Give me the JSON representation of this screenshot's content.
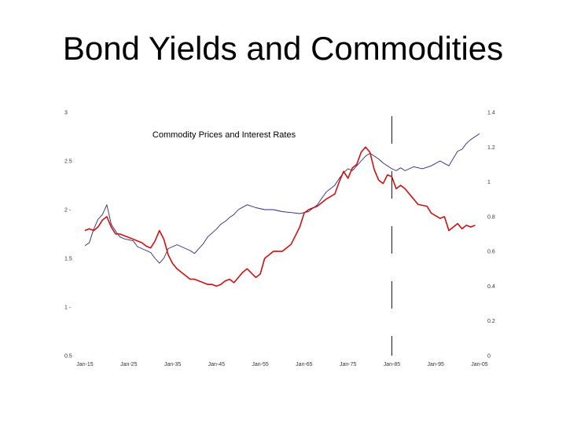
{
  "slide": {
    "title": "Bond Yields and Commodities"
  },
  "chart_data": {
    "type": "line",
    "title": "Commodity Prices and Interest Rates",
    "xlabel": "",
    "x_ticks": [
      "Jan-15",
      "Jan-25",
      "Jan-35",
      "Jan-45",
      "Jan-55",
      "Jan-65",
      "Jan-75",
      "Jan-85",
      "Jan-95",
      "Jan-05"
    ],
    "xlim": [
      1915,
      2005
    ],
    "y_left_ticks": [
      "0.5",
      "1 -",
      "1.5",
      "2 -",
      "2.5",
      "3"
    ],
    "y_left_values": [
      0.5,
      1.0,
      1.5,
      2.0,
      2.5,
      3.0
    ],
    "ylim_left": [
      0.5,
      3.0
    ],
    "y_right_ticks": [
      "0",
      "0.2",
      "0.4",
      "0.6",
      "0.8",
      "1",
      "1.2",
      "1.4"
    ],
    "y_right_values": [
      0,
      0.2,
      0.4,
      0.6,
      0.8,
      1.0,
      1.2,
      1.4
    ],
    "ylim_right": [
      0,
      1.4
    ],
    "grid": false,
    "legend": "none",
    "marker_year": 1985,
    "series": [
      {
        "color": "#2a2a7a",
        "axis": "left",
        "x": [
          1915,
          1916,
          1917,
          1918,
          1919,
          1920,
          1921,
          1922,
          1923,
          1924,
          1925,
          1926,
          1927,
          1928,
          1929,
          1930,
          1931,
          1932,
          1933,
          1934,
          1935,
          1936,
          1937,
          1938,
          1939,
          1940,
          1941,
          1942,
          1943,
          1944,
          1945,
          1946,
          1947,
          1948,
          1949,
          1950,
          1952,
          1954,
          1956,
          1958,
          1960,
          1962,
          1964,
          1966,
          1968,
          1970,
          1972,
          1973,
          1974,
          1975,
          1976,
          1977,
          1978,
          1979,
          1980,
          1981,
          1982,
          1983,
          1984,
          1985,
          1986,
          1987,
          1988,
          1990,
          1992,
          1994,
          1996,
          1998,
          2000,
          2001,
          2002,
          2003,
          2004,
          2005
        ],
        "values": [
          1.63,
          1.66,
          1.8,
          1.9,
          1.95,
          2.05,
          1.85,
          1.78,
          1.72,
          1.7,
          1.69,
          1.68,
          1.62,
          1.6,
          1.58,
          1.56,
          1.5,
          1.45,
          1.5,
          1.6,
          1.62,
          1.64,
          1.62,
          1.6,
          1.58,
          1.55,
          1.6,
          1.65,
          1.72,
          1.76,
          1.8,
          1.85,
          1.88,
          1.92,
          1.95,
          2.0,
          2.05,
          2.02,
          2.0,
          2.0,
          1.98,
          1.97,
          1.96,
          1.98,
          2.05,
          2.18,
          2.25,
          2.32,
          2.38,
          2.42,
          2.4,
          2.45,
          2.5,
          2.55,
          2.58,
          2.55,
          2.52,
          2.48,
          2.45,
          2.42,
          2.4,
          2.43,
          2.4,
          2.44,
          2.42,
          2.45,
          2.5,
          2.45,
          2.6,
          2.62,
          2.68,
          2.72,
          2.75,
          2.78
        ]
      },
      {
        "color": "#cc1111",
        "axis": "right",
        "x": [
          1915,
          1916,
          1917,
          1918,
          1919,
          1920,
          1921,
          1922,
          1923,
          1924,
          1925,
          1926,
          1927,
          1928,
          1929,
          1930,
          1931,
          1932,
          1933,
          1934,
          1935,
          1936,
          1937,
          1938,
          1939,
          1940,
          1941,
          1942,
          1943,
          1944,
          1945,
          1946,
          1947,
          1948,
          1949,
          1950,
          1951,
          1952,
          1954,
          1955,
          1956,
          1958,
          1960,
          1962,
          1964,
          1965,
          1966,
          1968,
          1970,
          1972,
          1973,
          1974,
          1975,
          1976,
          1977,
          1978,
          1979,
          1980,
          1981,
          1982,
          1983,
          1984,
          1985,
          1986,
          1987,
          1988,
          1990,
          1991,
          1993,
          1994,
          1996,
          1997,
          1998,
          2000,
          2001,
          2002,
          2003,
          2004
        ],
        "values": [
          0.72,
          0.73,
          0.72,
          0.74,
          0.78,
          0.8,
          0.74,
          0.7,
          0.7,
          0.69,
          0.68,
          0.67,
          0.66,
          0.65,
          0.63,
          0.62,
          0.66,
          0.72,
          0.67,
          0.58,
          0.53,
          0.5,
          0.48,
          0.46,
          0.44,
          0.44,
          0.43,
          0.42,
          0.41,
          0.41,
          0.4,
          0.41,
          0.43,
          0.44,
          0.42,
          0.45,
          0.48,
          0.5,
          0.45,
          0.47,
          0.56,
          0.6,
          0.6,
          0.64,
          0.74,
          0.82,
          0.84,
          0.86,
          0.9,
          0.93,
          1.0,
          1.06,
          1.02,
          1.08,
          1.1,
          1.17,
          1.2,
          1.17,
          1.07,
          1.01,
          0.99,
          1.04,
          1.03,
          0.96,
          0.98,
          0.96,
          0.9,
          0.87,
          0.86,
          0.82,
          0.79,
          0.8,
          0.72,
          0.76,
          0.73,
          0.75,
          0.74,
          0.75
        ]
      }
    ]
  }
}
